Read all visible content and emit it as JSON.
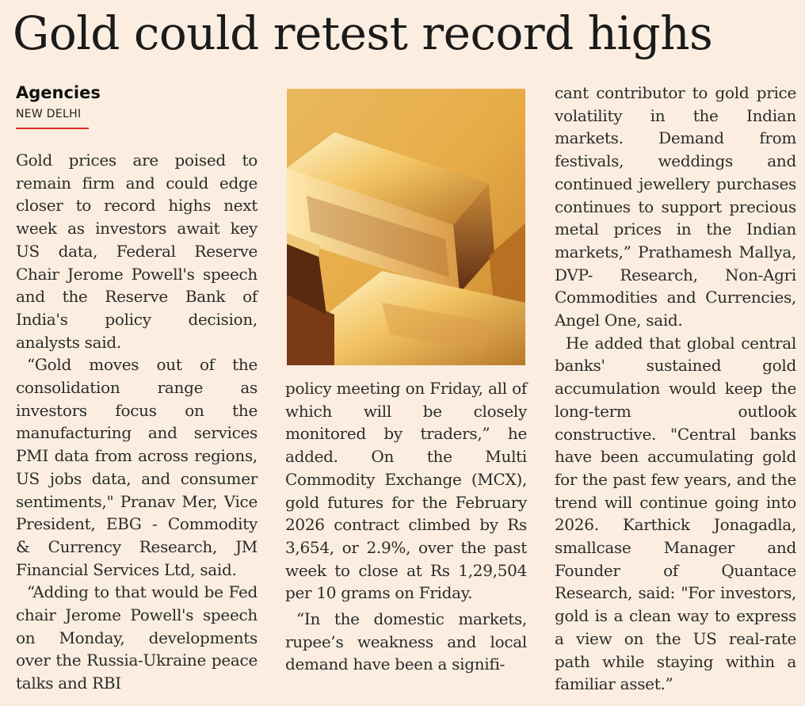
{
  "headline": "Gold could retest record highs",
  "byline": "Agencies",
  "dateline": "NEW DELHI",
  "photo_description": "gold-bars-photo",
  "columns": {
    "col1": [
      "Gold prices are poised to remain firm and could edge closer to record highs next week as investors await key US data, Federal Reserve Chair Jerome Powell's speech and the Reserve Bank of India's policy decision, analysts said.",
      "“Gold moves out of the consolidation range as investors focus on the manufacturing and services PMI data from across regions, US jobs data, and consumer sentiments,\" Pranav Mer, Vice President, EBG - Commodity & Currency Research, JM Financial Services Ltd, said.",
      "“Adding to that would be Fed chair Jerome Powell's speech on Monday, developments over the Russia-Ukraine peace talks and RBI"
    ],
    "col2": [
      "policy meeting on Friday, all of which will be closely monitored by traders,” he added. On the Multi Commodity Exchange (MCX), gold futures for the February 2026 contract climbed by Rs 3,654, or 2.9%, over the past week to close at Rs 1,29,504 per 10 grams on Friday.",
      "“In the domestic markets, rupee’s weakness and local demand have been a signifi-"
    ],
    "col3": [
      "cant contributor to gold price volatility in the Indian markets. Demand from festivals, weddings and continued jewellery purchases continues to support precious metal prices in the Indian markets,” Prathamesh Mallya, DVP- Research, Non-Agri Commodities and Currencies, Angel One, said.",
      "He added that global central banks' sustained gold accumulation would keep the long-term outlook constructive. \"Central banks have been accumulating gold for the past few years, and the trend will continue going into 2026. Karthick Jonagadla, smallcase Manager and Founder of Quantace Research, said: \"For investors, gold is a clean way to express a view on the US real-rate path while staying within a familiar asset.”"
    ]
  },
  "colors": {
    "background": "#fbeee0",
    "accent_rule": "#d92b26"
  }
}
